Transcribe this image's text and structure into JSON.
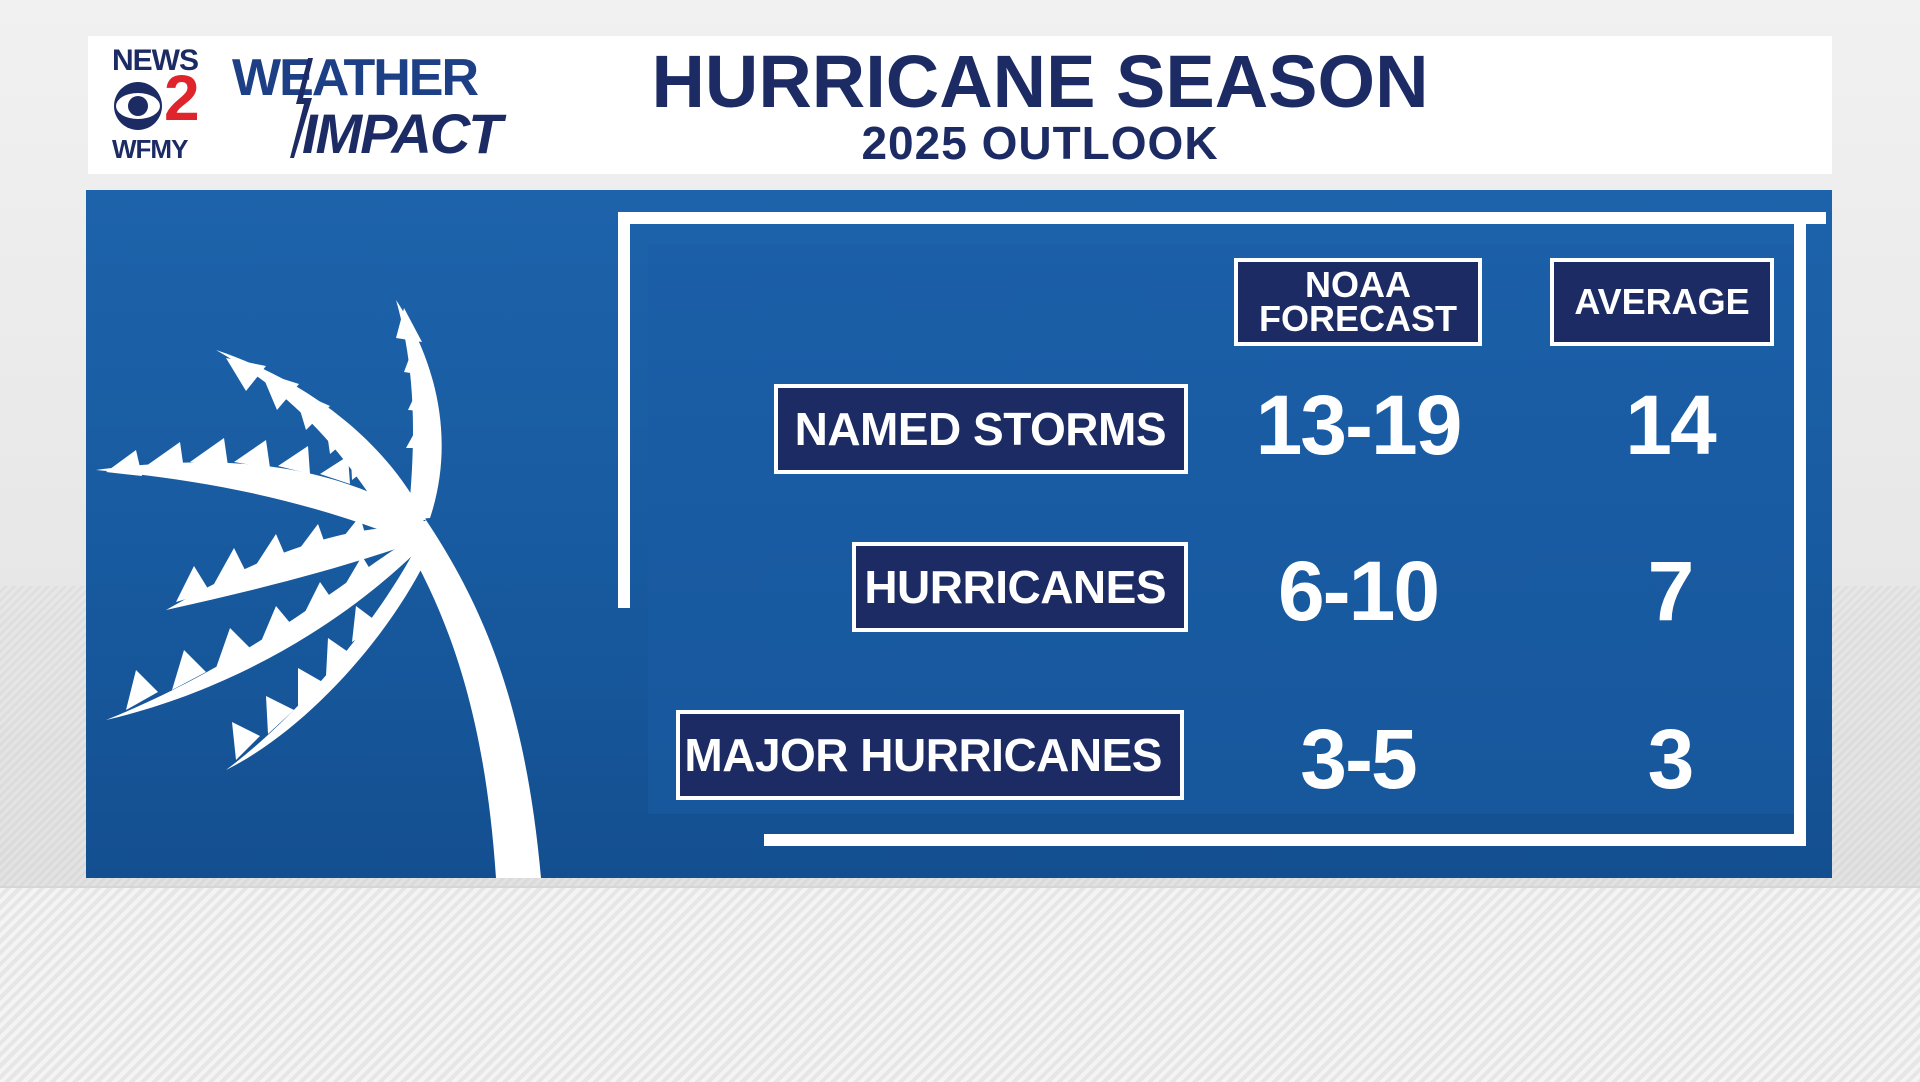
{
  "logo": {
    "news": "NEWS",
    "channel_number": "2",
    "station": "WFMY",
    "brand_line1": "WEATHER",
    "brand_line2": "IMPACT"
  },
  "header": {
    "title": "HURRICANE SEASON",
    "subtitle": "2025 OUTLOOK"
  },
  "columns": {
    "noaa": "NOAA FORECAST",
    "noaa_line1": "NOAA",
    "noaa_line2": "FORECAST",
    "average": "AVERAGE"
  },
  "rows": [
    {
      "label": "NAMED STORMS",
      "noaa_forecast": "13-19",
      "average": "14"
    },
    {
      "label": "HURRICANES",
      "noaa_forecast": "6-10",
      "average": "7"
    },
    {
      "label": "MAJOR HURRICANES",
      "noaa_forecast": "3-5",
      "average": "3"
    }
  ],
  "colors": {
    "navy": "#1c2b63",
    "panel_blue": "#185a9f",
    "logo_red": "#e0242b",
    "white": "#ffffff"
  },
  "icons": [
    "palm-tree-icon",
    "cbs-eye-icon",
    "lightning-bolt-icon"
  ]
}
